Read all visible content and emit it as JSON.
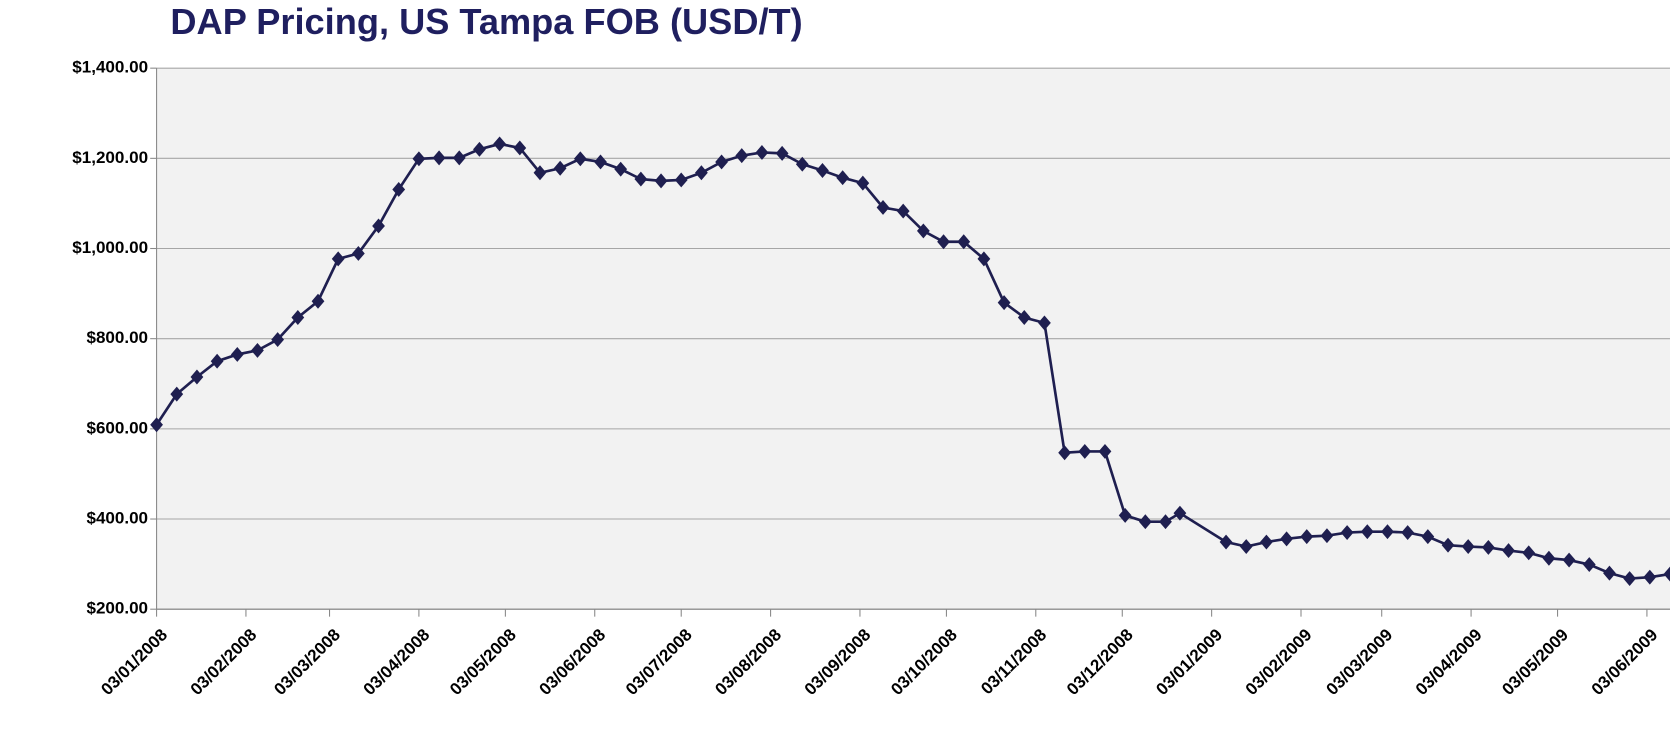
{
  "chart_data": {
    "type": "line",
    "title": "DAP Pricing, US Tampa FOB (USD/T)",
    "x": [
      "03/01/2008",
      "10/01/2008",
      "17/01/2008",
      "24/01/2008",
      "31/01/2008",
      "07/02/2008",
      "14/02/2008",
      "21/02/2008",
      "28/02/2008",
      "06/03/2008",
      "13/03/2008",
      "20/03/2008",
      "27/03/2008",
      "03/04/2008",
      "10/04/2008",
      "17/04/2008",
      "24/04/2008",
      "01/05/2008",
      "08/05/2008",
      "15/05/2008",
      "22/05/2008",
      "29/05/2008",
      "05/06/2008",
      "12/06/2008",
      "19/06/2008",
      "26/06/2008",
      "03/07/2008",
      "10/07/2008",
      "17/07/2008",
      "24/07/2008",
      "31/07/2008",
      "07/08/2008",
      "14/08/2008",
      "21/08/2008",
      "28/08/2008",
      "04/09/2008",
      "11/09/2008",
      "18/09/2008",
      "25/09/2008",
      "02/10/2008",
      "09/10/2008",
      "16/10/2008",
      "23/10/2008",
      "30/10/2008",
      "06/11/2008",
      "13/11/2008",
      "20/11/2008",
      "27/11/2008",
      "04/12/2008",
      "11/12/2008",
      "18/12/2008",
      "23/12/2008",
      "08/01/2009",
      "15/01/2009",
      "22/01/2009",
      "29/01/2009",
      "05/02/2009",
      "12/02/2009",
      "19/02/2009",
      "26/02/2009",
      "05/03/2009",
      "12/03/2009",
      "19/03/2009",
      "26/03/2009",
      "02/04/2009",
      "09/04/2009",
      "16/04/2009",
      "23/04/2009",
      "30/04/2009",
      "07/05/2009",
      "14/05/2009",
      "21/05/2009",
      "28/05/2009",
      "04/06/2009",
      "11/06/2009"
    ],
    "series": [
      {
        "name": "DAP",
        "color": "#1f1f50",
        "values": [
          609,
          677,
          715,
          750,
          765,
          774,
          798,
          847,
          883,
          977,
          989,
          1050,
          1131,
          1199,
          1201,
          1201,
          1220,
          1232,
          1223,
          1168,
          1178,
          1199,
          1192,
          1176,
          1154,
          1150,
          1152,
          1168,
          1192,
          1206,
          1213,
          1211,
          1187,
          1173,
          1157,
          1145,
          1091,
          1083,
          1039,
          1015,
          1015,
          977,
          880,
          847,
          835,
          547,
          550,
          550,
          408,
          394,
          394,
          413,
          349,
          339,
          349,
          356,
          361,
          363,
          370,
          372,
          372,
          370,
          361,
          342,
          339,
          337,
          330,
          325,
          313,
          309,
          299,
          280,
          268,
          271,
          278
        ]
      }
    ],
    "xlim": [
      "03/01/2008",
      "11/06/2009"
    ],
    "xticks": [
      "03/01/2008",
      "03/02/2008",
      "03/03/2008",
      "03/04/2008",
      "03/05/2008",
      "03/06/2008",
      "03/07/2008",
      "03/08/2008",
      "03/09/2008",
      "03/10/2008",
      "03/11/2008",
      "03/12/2008",
      "03/01/2009",
      "03/02/2009",
      "03/03/2009",
      "03/04/2009",
      "03/05/2009",
      "03/06/2009"
    ],
    "ylim": [
      200,
      1400
    ],
    "yticks": [
      {
        "value": 200,
        "label": "$200.00"
      },
      {
        "value": 400,
        "label": "$400.00"
      },
      {
        "value": 600,
        "label": "$600.00"
      },
      {
        "value": 800,
        "label": "$800.00"
      },
      {
        "value": 1000,
        "label": "$1,000.00"
      },
      {
        "value": 1200,
        "label": "$1,200.00"
      },
      {
        "value": 1400,
        "label": "$1,400.00"
      }
    ],
    "grid": true,
    "plot_background": "#f2f2f2"
  }
}
